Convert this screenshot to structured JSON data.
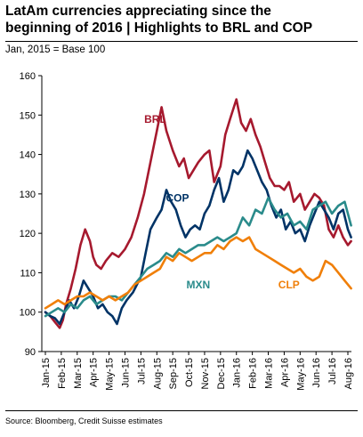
{
  "header": {
    "title_line1": "LatAm currencies appreciating since the",
    "title_line2": "beginning of 2016 | Highlights to BRL and COP",
    "subtitle": "Jan, 2015 = Base 100"
  },
  "footer": {
    "source": "Source: Bloomberg, Credit Suisse estimates"
  },
  "chart_data": {
    "type": "line",
    "title": "LatAm currencies appreciating since the beginning of 2016 | Highlights to BRL and COP",
    "subtitle": "Jan, 2015 = Base 100",
    "x_labels": [
      "Jan-15",
      "Feb-15",
      "Mar-15",
      "Apr-15",
      "May-15",
      "Jun-15",
      "Jul-15",
      "Aug-15",
      "Sep-15",
      "Oct-15",
      "Nov-15",
      "Dec-15",
      "Jan-16",
      "Feb-16",
      "Mar-16",
      "Apr-16",
      "May-16",
      "Jun-16",
      "Jul-16",
      "Aug-16"
    ],
    "ylim": [
      90,
      160
    ],
    "y_ticks": [
      90,
      100,
      110,
      120,
      130,
      140,
      150,
      160
    ],
    "xlabel": "",
    "ylabel": "",
    "grid": false,
    "legend": "inline labels",
    "series": [
      {
        "name": "BRL",
        "color": "#a6192e",
        "x": [
          0,
          0.3,
          0.6,
          0.9,
          1.1,
          1.3,
          1.6,
          1.9,
          2.2,
          2.5,
          2.8,
          3.0,
          3.2,
          3.5,
          3.8,
          4.2,
          4.6,
          5.0,
          5.4,
          5.8,
          6.2,
          6.6,
          7.0,
          7.3,
          7.6,
          8.0,
          8.4,
          8.7,
          9.0,
          9.3,
          9.6,
          10.0,
          10.3,
          10.6,
          11.0,
          11.3,
          11.6,
          12.0,
          12.3,
          12.6,
          12.9,
          13.2,
          13.5,
          13.8,
          14.1,
          14.4,
          14.7,
          15.0,
          15.3,
          15.6,
          16.0,
          16.3,
          16.6,
          16.9,
          17.2,
          17.5,
          17.8,
          18.1,
          18.4,
          18.7,
          19.0,
          19.2
        ],
        "y": [
          100,
          99,
          97.5,
          96,
          98,
          102,
          106,
          111,
          117,
          121,
          118,
          114,
          112,
          111,
          113,
          115,
          114,
          116,
          119,
          124,
          130,
          138,
          146,
          152,
          146,
          141,
          137,
          139,
          134,
          136,
          138,
          140,
          141,
          133,
          137,
          145,
          149,
          154,
          148,
          146,
          149,
          145,
          142,
          138,
          134,
          132,
          132,
          131,
          133,
          128,
          130,
          126,
          128,
          130,
          129,
          127,
          121,
          119,
          122,
          119,
          117,
          118
        ]
      },
      {
        "name": "COP",
        "color": "#003366",
        "x": [
          0,
          0.3,
          0.6,
          0.9,
          1.2,
          1.5,
          1.8,
          2.1,
          2.4,
          2.7,
          3.0,
          3.3,
          3.6,
          3.9,
          4.2,
          4.5,
          4.8,
          5.1,
          5.5,
          6.0,
          6.3,
          6.6,
          7.0,
          7.3,
          7.6,
          7.9,
          8.2,
          8.5,
          8.8,
          9.1,
          9.4,
          9.7,
          10.0,
          10.3,
          10.6,
          10.9,
          11.2,
          11.5,
          11.8,
          12.1,
          12.4,
          12.7,
          13.0,
          13.3,
          13.6,
          13.9,
          14.2,
          14.5,
          14.8,
          15.1,
          15.4,
          15.7,
          16.0,
          16.3,
          16.6,
          16.9,
          17.2,
          17.5,
          17.8,
          18.1,
          18.4,
          18.7,
          19.0,
          19.2
        ],
        "y": [
          100,
          99,
          98.5,
          97,
          100,
          103,
          101,
          104,
          108,
          106,
          104,
          101,
          102,
          100,
          99,
          97,
          101,
          103,
          105,
          109,
          115,
          121,
          124,
          126,
          131,
          128,
          126,
          122,
          119,
          121,
          122,
          121,
          125,
          127,
          131,
          134,
          128,
          131,
          136,
          135,
          137,
          141,
          139,
          136,
          133,
          131,
          127,
          124,
          126,
          121,
          123,
          120,
          121,
          118,
          122,
          125,
          128,
          126,
          124,
          121,
          125,
          126,
          121,
          119
        ]
      },
      {
        "name": "MXN",
        "color": "#2a8b8b",
        "x": [
          0,
          0.4,
          0.8,
          1.2,
          1.6,
          2.0,
          2.4,
          2.8,
          3.2,
          3.6,
          4.0,
          4.4,
          4.8,
          5.2,
          5.6,
          6.0,
          6.4,
          6.8,
          7.2,
          7.6,
          8.0,
          8.4,
          8.8,
          9.2,
          9.6,
          10.0,
          10.4,
          10.8,
          11.2,
          11.6,
          12.0,
          12.4,
          12.8,
          13.2,
          13.6,
          14.0,
          14.4,
          14.8,
          15.2,
          15.6,
          16.0,
          16.4,
          16.8,
          17.2,
          17.6,
          18.0,
          18.4,
          18.8,
          19.2
        ],
        "y": [
          99,
          100,
          101,
          100,
          102,
          101,
          103,
          104,
          102,
          103,
          104,
          104,
          103,
          105,
          107,
          109,
          111,
          112,
          113,
          115,
          114,
          116,
          115,
          116,
          117,
          117,
          118,
          119,
          118,
          119,
          120,
          124,
          122,
          126,
          125,
          129,
          126,
          124,
          125,
          122,
          123,
          121,
          126,
          127,
          128,
          125,
          127,
          128,
          122
        ]
      },
      {
        "name": "CLP",
        "color": "#f07f09",
        "x": [
          0,
          0.4,
          0.8,
          1.2,
          1.6,
          2.0,
          2.4,
          2.8,
          3.2,
          3.6,
          4.0,
          4.4,
          4.8,
          5.2,
          5.6,
          6.0,
          6.4,
          6.8,
          7.2,
          7.6,
          8.0,
          8.4,
          8.8,
          9.2,
          9.6,
          10.0,
          10.4,
          10.8,
          11.2,
          11.6,
          12.0,
          12.4,
          12.8,
          13.2,
          13.6,
          14.0,
          14.4,
          14.8,
          15.2,
          15.6,
          16.0,
          16.4,
          16.8,
          17.2,
          17.6,
          18.0,
          18.4,
          18.8,
          19.2
        ],
        "y": [
          101,
          102,
          103,
          102,
          103,
          104,
          104,
          105,
          104,
          103,
          104,
          103,
          104,
          105,
          107,
          108,
          109,
          110,
          111,
          114,
          113,
          115,
          114,
          113,
          114,
          115,
          115,
          117,
          116,
          118,
          119,
          118,
          119,
          116,
          115,
          114,
          113,
          112,
          111,
          110,
          111,
          109,
          108,
          109,
          113,
          112,
          110,
          108,
          106
        ]
      }
    ],
    "annotations": [
      {
        "text": "BRL",
        "x": 6.9,
        "y": 148
      },
      {
        "text": "COP",
        "x": 8.3,
        "y": 128
      },
      {
        "text": "MXN",
        "x": 9.6,
        "y": 106
      },
      {
        "text": "CLP",
        "x": 15.3,
        "y": 106
      }
    ]
  }
}
